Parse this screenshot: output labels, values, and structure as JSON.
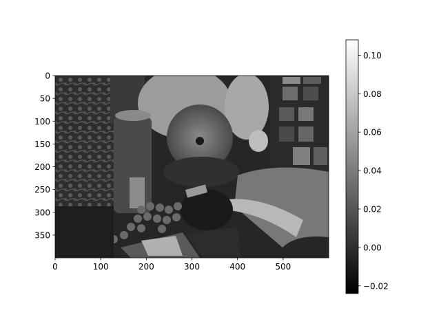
{
  "chart_data": {
    "type": "heatmap",
    "image_rows": 400,
    "image_cols": 600,
    "colormap": "gray",
    "x_ticks": [
      0,
      100,
      200,
      300,
      400,
      500
    ],
    "x_tick_labels": [
      "0",
      "100",
      "200",
      "300",
      "400",
      "500"
    ],
    "y_ticks": [
      0,
      50,
      100,
      150,
      200,
      250,
      300,
      350
    ],
    "y_tick_labels": [
      "0",
      "50",
      "100",
      "150",
      "200",
      "250",
      "300",
      "350"
    ],
    "colorbar": {
      "vmin": -0.024,
      "vmax": 0.108,
      "ticks": [
        -0.02,
        0.0,
        0.02,
        0.04,
        0.06,
        0.08,
        0.1
      ],
      "tick_labels": [
        "−0.02",
        "0.00",
        "0.02",
        "0.04",
        "0.06",
        "0.08",
        "0.10"
      ]
    }
  }
}
